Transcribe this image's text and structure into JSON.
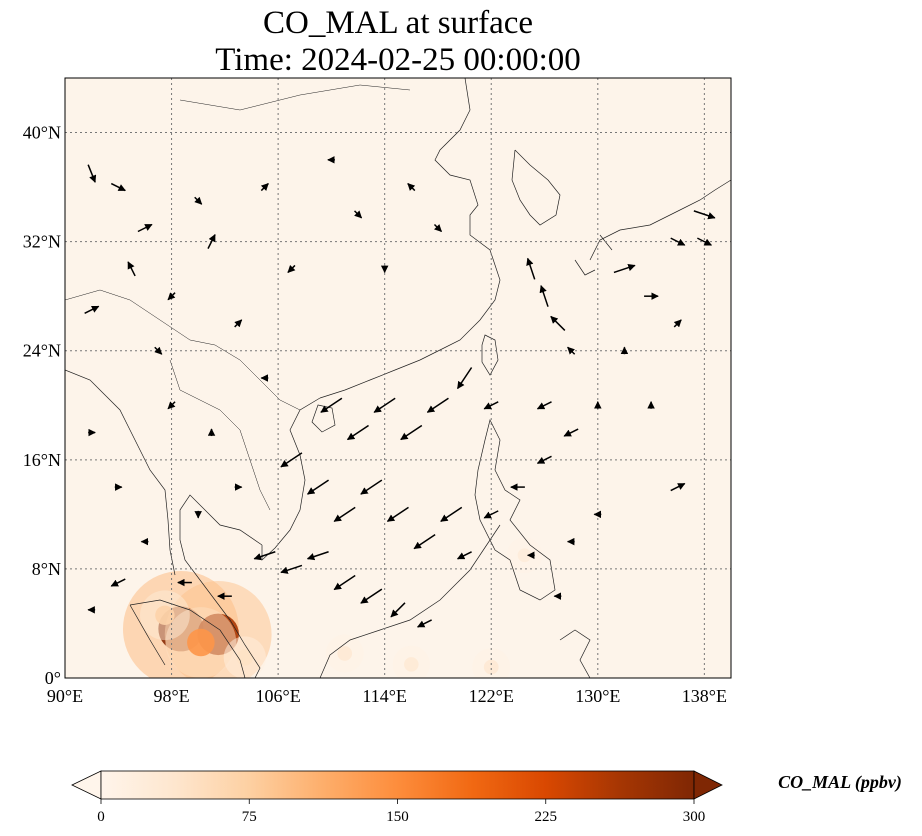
{
  "title_line1": "CO_MAL at surface",
  "title_line2": "Time: 2024-02-25 00:00:00",
  "chart_data": {
    "type": "heatmap",
    "title": "CO_MAL at surface\nTime: 2024-02-25 00:00:00",
    "lon_range": [
      90,
      140
    ],
    "lat_range": [
      0,
      44
    ],
    "grid": true,
    "x_ticks": [
      {
        "value": 90,
        "label": "90°E"
      },
      {
        "value": 98,
        "label": "98°E"
      },
      {
        "value": 106,
        "label": "106°E"
      },
      {
        "value": 114,
        "label": "114°E"
      },
      {
        "value": 122,
        "label": "122°E"
      },
      {
        "value": 130,
        "label": "130°E"
      },
      {
        "value": 138,
        "label": "138°E"
      }
    ],
    "y_ticks": [
      {
        "value": 0,
        "label": "0°"
      },
      {
        "value": 8,
        "label": "8°N"
      },
      {
        "value": 16,
        "label": "16°N"
      },
      {
        "value": 24,
        "label": "24°N"
      },
      {
        "value": 32,
        "label": "32°N"
      },
      {
        "value": 40,
        "label": "40°N"
      }
    ],
    "colorbar": {
      "label": "CO_MAL (ppbv)",
      "min": 0,
      "max": 300,
      "ticks": [
        0,
        75,
        150,
        225,
        300
      ],
      "extend": "both",
      "colormap": [
        "#fff5eb",
        "#fee6ce",
        "#fdd0a2",
        "#fdae6b",
        "#fd8d3c",
        "#f16913",
        "#d94801",
        "#a63603",
        "#7f2704"
      ]
    },
    "background_value": 3,
    "hotspots": [
      {
        "lon": 98.7,
        "lat": 3.6,
        "value": 290
      },
      {
        "lon": 101.5,
        "lat": 3.2,
        "value": 260
      },
      {
        "lon": 100.2,
        "lat": 2.6,
        "value": 140
      },
      {
        "lon": 97.5,
        "lat": 4.6,
        "value": 70
      },
      {
        "lon": 103.5,
        "lat": 1.5,
        "value": 45
      },
      {
        "lon": 111.0,
        "lat": 1.8,
        "value": 30
      },
      {
        "lon": 116.0,
        "lat": 1.0,
        "value": 28
      },
      {
        "lon": 122.0,
        "lat": 0.8,
        "value": 30
      },
      {
        "lon": 124.5,
        "lat": 9.0,
        "value": 22
      }
    ],
    "wind_vectors": [
      {
        "lon": 92,
        "lat": 37,
        "u": 1,
        "v": -2.5
      },
      {
        "lon": 94,
        "lat": 36,
        "u": 2,
        "v": -1
      },
      {
        "lon": 96,
        "lat": 33,
        "u": 2,
        "v": 1
      },
      {
        "lon": 95,
        "lat": 30,
        "u": -1,
        "v": 2
      },
      {
        "lon": 92,
        "lat": 27,
        "u": 2,
        "v": 1
      },
      {
        "lon": 98,
        "lat": 28,
        "u": -1,
        "v": -1
      },
      {
        "lon": 97,
        "lat": 24,
        "u": 1,
        "v": -1
      },
      {
        "lon": 100,
        "lat": 35,
        "u": 1,
        "v": -1
      },
      {
        "lon": 101,
        "lat": 32,
        "u": 1,
        "v": 2
      },
      {
        "lon": 103,
        "lat": 26,
        "u": 1,
        "v": 1
      },
      {
        "lon": 105,
        "lat": 36,
        "u": 1,
        "v": 1
      },
      {
        "lon": 107,
        "lat": 30,
        "u": -1,
        "v": -1
      },
      {
        "lon": 110,
        "lat": 38,
        "u": -1,
        "v": 0
      },
      {
        "lon": 112,
        "lat": 34,
        "u": 1,
        "v": -1
      },
      {
        "lon": 116,
        "lat": 36,
        "u": -1,
        "v": 1
      },
      {
        "lon": 118,
        "lat": 33,
        "u": 1,
        "v": -1
      },
      {
        "lon": 114,
        "lat": 30,
        "u": 0,
        "v": -1
      },
      {
        "lon": 110,
        "lat": 20,
        "u": -3,
        "v": -2
      },
      {
        "lon": 112,
        "lat": 18,
        "u": -3,
        "v": -2
      },
      {
        "lon": 114,
        "lat": 20,
        "u": -3,
        "v": -2
      },
      {
        "lon": 116,
        "lat": 18,
        "u": -3,
        "v": -2
      },
      {
        "lon": 118,
        "lat": 20,
        "u": -3,
        "v": -2
      },
      {
        "lon": 120,
        "lat": 22,
        "u": -2,
        "v": -3
      },
      {
        "lon": 122,
        "lat": 20,
        "u": -2,
        "v": -1
      },
      {
        "lon": 107,
        "lat": 16,
        "u": -3,
        "v": -2
      },
      {
        "lon": 109,
        "lat": 14,
        "u": -3,
        "v": -2
      },
      {
        "lon": 111,
        "lat": 12,
        "u": -3,
        "v": -2
      },
      {
        "lon": 113,
        "lat": 14,
        "u": -3,
        "v": -2
      },
      {
        "lon": 115,
        "lat": 12,
        "u": -3,
        "v": -2
      },
      {
        "lon": 117,
        "lat": 10,
        "u": -3,
        "v": -2
      },
      {
        "lon": 119,
        "lat": 12,
        "u": -3,
        "v": -2
      },
      {
        "lon": 105,
        "lat": 9,
        "u": -3,
        "v": -1
      },
      {
        "lon": 107,
        "lat": 8,
        "u": -3,
        "v": -1
      },
      {
        "lon": 109,
        "lat": 9,
        "u": -3,
        "v": -1
      },
      {
        "lon": 111,
        "lat": 7,
        "u": -3,
        "v": -2
      },
      {
        "lon": 113,
        "lat": 6,
        "u": -3,
        "v": -2
      },
      {
        "lon": 115,
        "lat": 5,
        "u": -2,
        "v": -2
      },
      {
        "lon": 117,
        "lat": 4,
        "u": -2,
        "v": -1
      },
      {
        "lon": 126,
        "lat": 28,
        "u": -1,
        "v": 3
      },
      {
        "lon": 127,
        "lat": 26,
        "u": -2,
        "v": 2
      },
      {
        "lon": 125,
        "lat": 30,
        "u": -1,
        "v": 3
      },
      {
        "lon": 128,
        "lat": 24,
        "u": -1,
        "v": 1
      },
      {
        "lon": 126,
        "lat": 20,
        "u": -2,
        "v": -1
      },
      {
        "lon": 128,
        "lat": 18,
        "u": -2,
        "v": -1
      },
      {
        "lon": 126,
        "lat": 16,
        "u": -2,
        "v": -1
      },
      {
        "lon": 132,
        "lat": 30,
        "u": 3,
        "v": 1
      },
      {
        "lon": 134,
        "lat": 28,
        "u": 2,
        "v": 0
      },
      {
        "lon": 136,
        "lat": 32,
        "u": 2,
        "v": -1
      },
      {
        "lon": 138,
        "lat": 34,
        "u": 3,
        "v": -1
      },
      {
        "lon": 138,
        "lat": 32,
        "u": 2,
        "v": -1
      },
      {
        "lon": 136,
        "lat": 26,
        "u": 1,
        "v": 1
      },
      {
        "lon": 132,
        "lat": 24,
        "u": 0,
        "v": 1
      },
      {
        "lon": 134,
        "lat": 20,
        "u": 0,
        "v": 1
      },
      {
        "lon": 130,
        "lat": 20,
        "u": 0,
        "v": 1
      },
      {
        "lon": 136,
        "lat": 14,
        "u": 2,
        "v": 1
      },
      {
        "lon": 130,
        "lat": 12,
        "u": -1,
        "v": 0
      },
      {
        "lon": 128,
        "lat": 10,
        "u": -1,
        "v": 0
      },
      {
        "lon": 124,
        "lat": 14,
        "u": -2,
        "v": 0
      },
      {
        "lon": 122,
        "lat": 12,
        "u": -2,
        "v": -1
      },
      {
        "lon": 120,
        "lat": 9,
        "u": -2,
        "v": -1
      },
      {
        "lon": 125,
        "lat": 9,
        "u": -1,
        "v": 0
      },
      {
        "lon": 127,
        "lat": 6,
        "u": -1,
        "v": 0
      },
      {
        "lon": 92,
        "lat": 18,
        "u": 1,
        "v": 0
      },
      {
        "lon": 94,
        "lat": 14,
        "u": 1,
        "v": 0
      },
      {
        "lon": 96,
        "lat": 10,
        "u": -1,
        "v": 0
      },
      {
        "lon": 94,
        "lat": 7,
        "u": -2,
        "v": -1
      },
      {
        "lon": 92,
        "lat": 5,
        "u": -1,
        "v": 0
      },
      {
        "lon": 99,
        "lat": 7,
        "u": -2,
        "v": 0
      },
      {
        "lon": 102,
        "lat": 6,
        "u": -2,
        "v": 0
      },
      {
        "lon": 101,
        "lat": 18,
        "u": 0,
        "v": 1
      },
      {
        "lon": 103,
        "lat": 14,
        "u": 1,
        "v": 0
      },
      {
        "lon": 100,
        "lat": 12,
        "u": 0,
        "v": -1
      },
      {
        "lon": 98,
        "lat": 20,
        "u": -1,
        "v": -1
      },
      {
        "lon": 105,
        "lat": 22,
        "u": -1,
        "v": 0
      }
    ]
  }
}
